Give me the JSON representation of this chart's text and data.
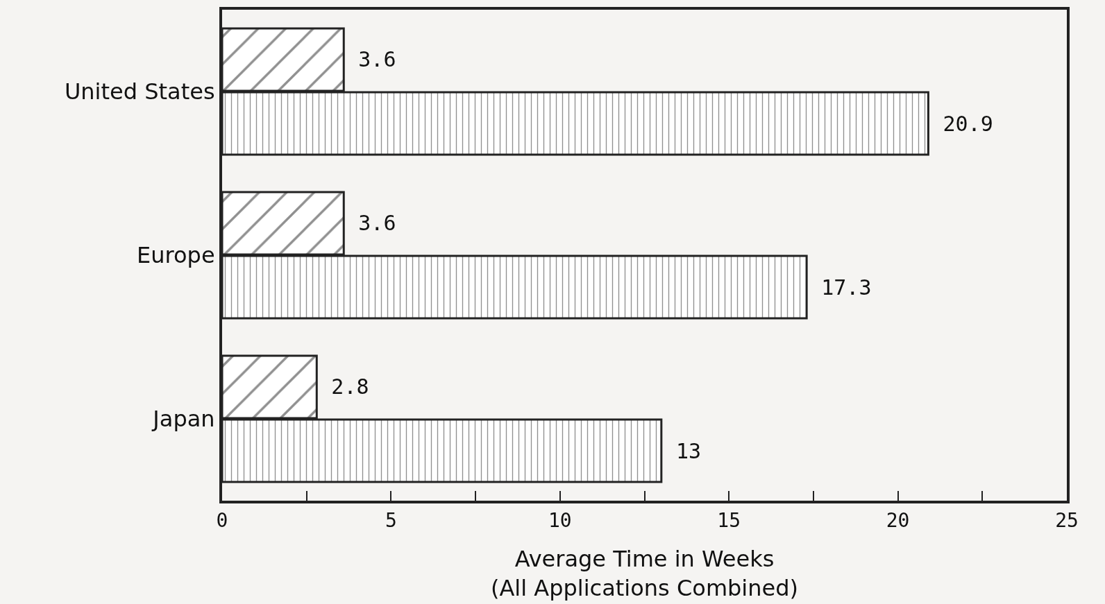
{
  "chart_data": {
    "type": "bar",
    "orientation": "horizontal",
    "xlabel": "Average Time in Weeks\n(All Applications Combined)",
    "categories": [
      "United States",
      "Europe",
      "Japan"
    ],
    "series": [
      {
        "color": "#222222",
        "values": [
          3.6,
          3.6,
          2.8
        ]
      },
      {
        "color": "#222222",
        "values": [
          20.9,
          17.3,
          13
        ]
      }
    ],
    "xlim": [
      0,
      25
    ],
    "xticks": [
      0,
      {
        "value": 2.5,
        "label": null
      },
      5,
      {
        "value": 7.5,
        "label": null
      },
      10,
      {
        "value": 12.5,
        "label": null
      },
      15,
      {
        "value": 17.5,
        "label": null
      },
      20,
      {
        "value": 22.5,
        "label": null
      },
      25
    ],
    "data_labels": true
  }
}
